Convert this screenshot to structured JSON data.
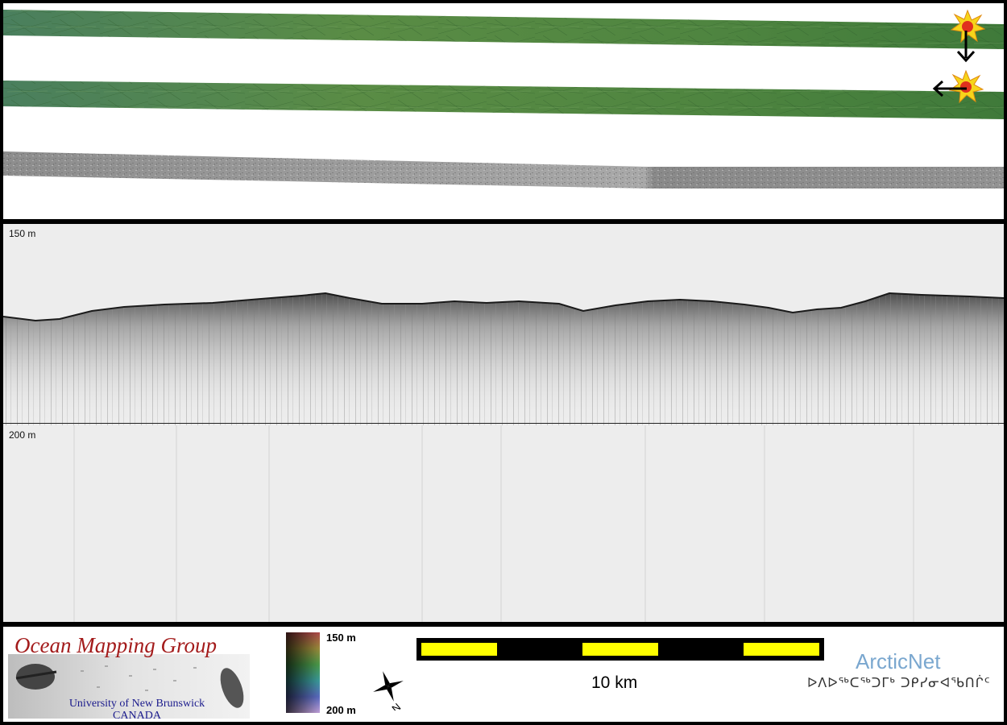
{
  "profile": {
    "depth_top": "150 m",
    "depth_bottom": "200 m"
  },
  "legend": {
    "organization": {
      "title": "Ocean Mapping Group",
      "line1": "University of New Brunswick",
      "line2": "CANADA"
    },
    "colorbar": {
      "top": "150 m",
      "bottom": "200 m"
    },
    "compass_letter": "N",
    "scale": {
      "label": "10 km",
      "segments": [
        "yellow",
        "black",
        "yellow",
        "black",
        "yellow"
      ]
    },
    "partner": {
      "name": "ArcticNet",
      "inuktitut": "ᐅᐱᐅᖅᑕᖅᑐᒥᒃ ᑐᑭᓯᓂᐊᖃᑎᒌᑦ"
    }
  },
  "colors": {
    "swath_green": "#4f8a3e",
    "backscatter_gray": "#9a9a9a",
    "marker_yellow": "#f6d51a",
    "marker_red": "#e0301e",
    "scale_yellow": "#ffff00",
    "title_red": "#a31b1b",
    "arctic_blue": "#7aa7cf"
  }
}
